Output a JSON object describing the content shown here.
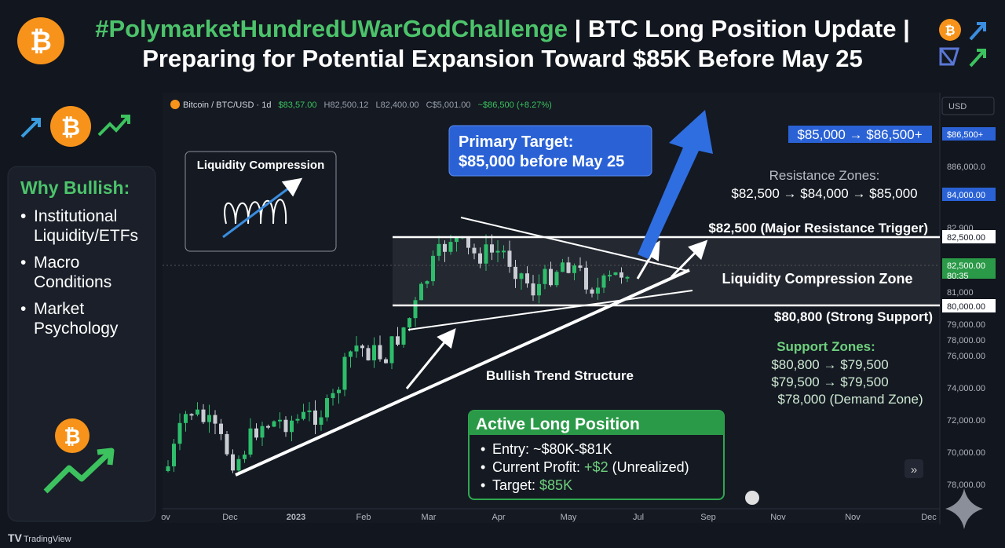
{
  "header": {
    "title_tag": "#PolymarketHundredUWarGodChallenge",
    "title_rest": " | BTC Long Position Update |",
    "subtitle": "Preparing for Potential Expansion Toward $85K Before May 25"
  },
  "toolbar": {
    "symbol": "Bitcoin / BTC/USD · 1d",
    "open": "$83,57.00",
    "high": "H82,500.12",
    "low": "L82,400.00",
    "close": "C$5,001.00",
    "change": "~$86,500 (+8.27%)",
    "currency": "USD"
  },
  "why_bullish": {
    "title": "Why Bullish:",
    "items": [
      [
        "Institutional",
        "Liquidity/ETFs"
      ],
      [
        "Macro",
        "Conditions"
      ],
      [
        "Market",
        "Psychology"
      ]
    ]
  },
  "liquidity_box": "Liquidity Compression",
  "primary_target": [
    "Primary Target:",
    "$85,000 before May 25"
  ],
  "target_range": "$85,000 → $86,500+",
  "resistance": {
    "title": "Resistance Zones:",
    "levels": "$82,500 → $84,000 → $85,000"
  },
  "major_resistance": "$82,500 (Major Resistance Trigger)",
  "compression_zone": "Liquidity Compression Zone",
  "strong_support": "$80,800 (Strong Support)",
  "support": {
    "title": "Support Zones:",
    "lines": [
      "$80,800 → $79,500",
      "$79,500 → $79,500",
      "$78,000 (Demand Zone)"
    ]
  },
  "trend_label": "Bullish Trend Structure",
  "position": {
    "title": "Active Long Position",
    "items": [
      {
        "label": "Entry: ",
        "value": "~$80K-$81K"
      },
      {
        "label": "Current Profit: ",
        "value": "+$2",
        "note": " (Unrealized)"
      },
      {
        "label": "Target: ",
        "value": "$85K"
      }
    ]
  },
  "price_axis": [
    "$86,500+",
    "886,000.0",
    "84,000.00",
    "82,900",
    "82,500.00",
    "82,500.00",
    "80:35",
    "81,000",
    "80,000.00",
    "79,000.00",
    "78,000.00",
    "76,000.00",
    "74,000.00",
    "72,000.00",
    "70,000.00",
    "78,000.00"
  ],
  "time_axis": [
    "ov",
    "Dec",
    "2023",
    "Feb",
    "Mar",
    "Apr",
    "May",
    "Jul",
    "Sep",
    "Nov",
    "Nov",
    "Dec"
  ],
  "footer": "TradingView"
}
